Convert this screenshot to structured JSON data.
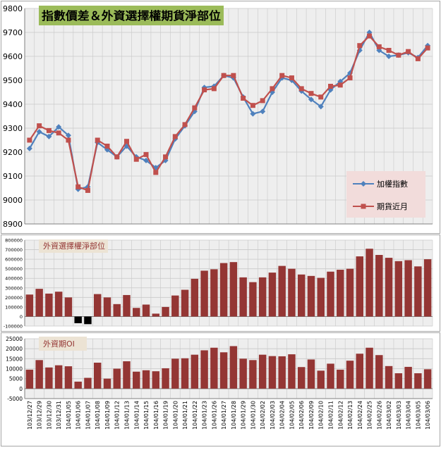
{
  "chart_data": [
    {
      "type": "line",
      "title": "指數價差＆外資選擇權期貨淨部位",
      "ylim": [
        8900,
        9800
      ],
      "yticks": [
        8900,
        9000,
        9100,
        9200,
        9300,
        9400,
        9500,
        9600,
        9700,
        9800
      ],
      "grid": true,
      "legend_position": "right",
      "series": [
        {
          "name": "加權指數",
          "color": "#4f81bd",
          "marker": "diamond",
          "values": [
            9215,
            9285,
            9265,
            9305,
            9270,
            9045,
            9055,
            9240,
            9210,
            9180,
            9225,
            9180,
            9165,
            9135,
            9165,
            9255,
            9310,
            9370,
            9470,
            9475,
            9520,
            9510,
            9430,
            9360,
            9370,
            9450,
            9510,
            9500,
            9455,
            9420,
            9390,
            9460,
            9495,
            9530,
            9625,
            9700,
            9625,
            9600,
            9605,
            9615,
            9595,
            9645
          ]
        },
        {
          "name": "期貨近月",
          "color": "#c0504d",
          "marker": "square",
          "values": [
            9250,
            9310,
            9290,
            9280,
            9250,
            9055,
            9040,
            9250,
            9225,
            9180,
            9245,
            9170,
            9190,
            9115,
            9180,
            9265,
            9315,
            9385,
            9460,
            9465,
            9520,
            9520,
            9425,
            9395,
            9415,
            9465,
            9520,
            9510,
            9465,
            9445,
            9430,
            9475,
            9480,
            9510,
            9645,
            9685,
            9640,
            9625,
            9605,
            9620,
            9590,
            9635
          ]
        }
      ]
    },
    {
      "type": "bar",
      "title": "外資選擇權淨部位",
      "ylim": [
        -100000,
        800000
      ],
      "yticks": [
        -100000,
        0,
        100000,
        200000,
        300000,
        400000,
        500000,
        600000,
        700000,
        800000
      ],
      "ytick_labels": [
        "-100000",
        "0",
        "100000",
        "200000",
        "300000",
        "400000",
        "500000",
        "600000",
        "700000",
        "800000"
      ],
      "color": "#943634",
      "negative_color": "#000000",
      "values": [
        230000,
        290000,
        240000,
        260000,
        200000,
        -70000,
        -80000,
        235000,
        200000,
        130000,
        225000,
        90000,
        125000,
        30000,
        100000,
        220000,
        280000,
        395000,
        480000,
        495000,
        560000,
        570000,
        410000,
        360000,
        410000,
        460000,
        530000,
        500000,
        440000,
        425000,
        405000,
        470000,
        490000,
        500000,
        630000,
        710000,
        645000,
        615000,
        580000,
        590000,
        525000,
        600000
      ]
    },
    {
      "type": "bar",
      "title": "外資期OI",
      "ylim": [
        -5000,
        25000
      ],
      "yticks": [
        -5000,
        0,
        5000,
        10000,
        15000,
        20000,
        25000
      ],
      "ytick_labels": [
        "-5000",
        "0",
        "5000",
        "10000",
        "15000",
        "20000",
        "25000"
      ],
      "color": "#943634",
      "values": [
        9500,
        14300,
        10600,
        11700,
        11200,
        3500,
        5400,
        13000,
        5000,
        10000,
        13700,
        8500,
        9200,
        8700,
        10200,
        15000,
        15200,
        17000,
        19200,
        20500,
        18200,
        21300,
        15000,
        14300,
        17000,
        16300,
        16200,
        17200,
        10800,
        14600,
        9000,
        12500,
        9500,
        14000,
        17500,
        20500,
        16800,
        11300,
        7700,
        10900,
        7700,
        9700
      ]
    }
  ],
  "categories": [
    "103/12/27",
    "103/12/29",
    "103/12/30",
    "103/12/31",
    "104/01/05",
    "104/01/06",
    "104/01/07",
    "104/01/08",
    "104/01/09",
    "104/01/12",
    "104/01/13",
    "104/01/14",
    "104/01/15",
    "104/01/16",
    "104/01/19",
    "104/01/20",
    "104/01/21",
    "104/01/22",
    "104/01/23",
    "104/01/26",
    "104/01/27",
    "104/01/28",
    "104/01/29",
    "104/01/30",
    "104/02/02",
    "104/02/03",
    "104/02/04",
    "104/02/05",
    "104/02/06",
    "104/02/09",
    "104/02/10",
    "104/02/11",
    "104/02/12",
    "104/02/13",
    "104/02/24",
    "104/02/25",
    "104/02/26",
    "104/03/02",
    "104/03/03",
    "104/03/04",
    "104/03/05",
    "104/03/06"
  ],
  "colors": {
    "plot_bg": "#eeeeee",
    "grid": "#c8c8c8",
    "title1_bg": "#9bbb59",
    "legend_bg": "#f2dcdb",
    "title2_bg": "#ece3d4"
  }
}
